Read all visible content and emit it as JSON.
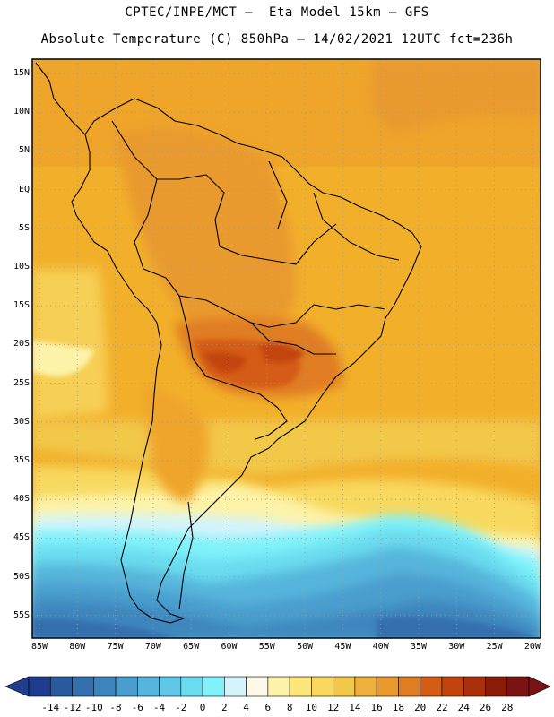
{
  "header": {
    "line1": "CPTEC/INPE/MCT –  Eta Model 15km – GFS",
    "line2": "Absolute Temperature (C) 850hPa – 14/02/2021 12UTC fct=236h"
  },
  "lat_labels": [
    "15N",
    "10N",
    "5N",
    "EQ",
    "5S",
    "10S",
    "15S",
    "20S",
    "25S",
    "30S",
    "35S",
    "40S",
    "45S",
    "50S",
    "55S"
  ],
  "lon_labels": [
    "85W",
    "80W",
    "75W",
    "70W",
    "65W",
    "60W",
    "55W",
    "50W",
    "45W",
    "40W",
    "35W",
    "30W",
    "25W",
    "20W"
  ],
  "colorbar": {
    "labels": [
      "-14",
      "-12",
      "-10",
      "-8",
      "-6",
      "-4",
      "-2",
      "0",
      "2",
      "4",
      "6",
      "8",
      "10",
      "12",
      "14",
      "16",
      "18",
      "20",
      "22",
      "24",
      "26",
      "28"
    ],
    "colors": [
      "#1f3d8c",
      "#2a5a9e",
      "#3470ae",
      "#3d86bd",
      "#4a9ecd",
      "#56b5dc",
      "#60c8e6",
      "#6adcef",
      "#7ff2fa",
      "#d4f4fb",
      "#fff8e6",
      "#fdf3a8",
      "#fbe77c",
      "#f8d95e",
      "#f2c84a",
      "#eeb03c",
      "#e99a2f",
      "#e07c22",
      "#d45c15",
      "#c1440f",
      "#a8300b",
      "#8b1c08",
      "#7a1414"
    ]
  }
}
